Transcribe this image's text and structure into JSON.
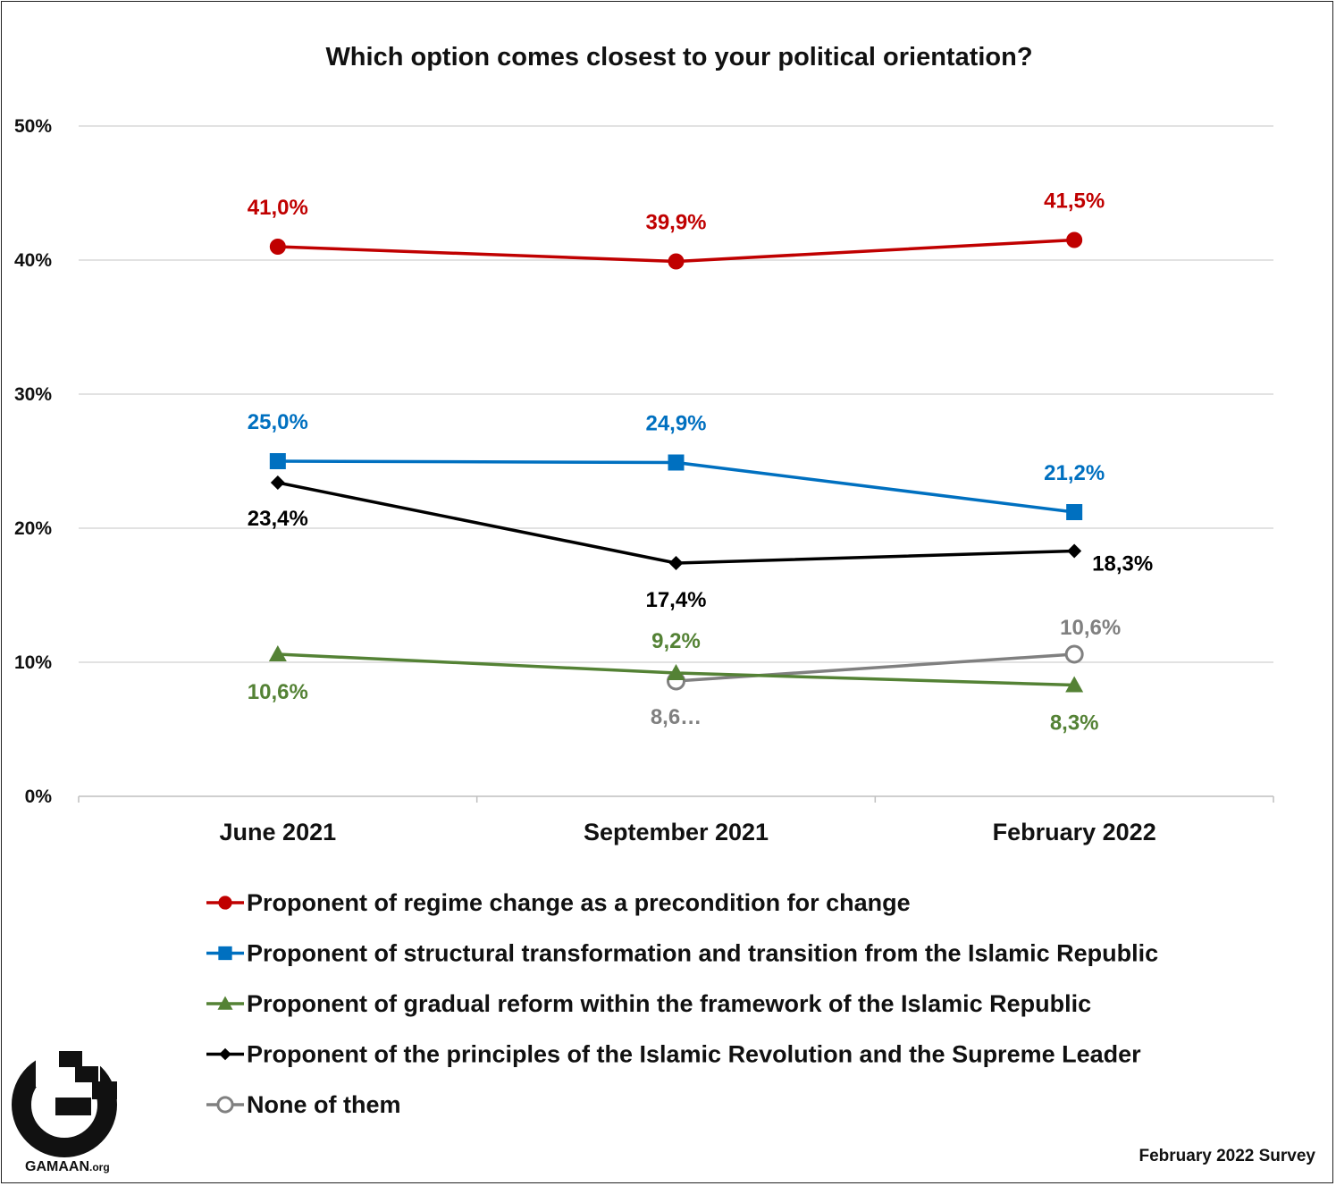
{
  "chart_data": {
    "type": "line",
    "title": "Which option comes closest to your political orientation?",
    "categories": [
      "June 2021",
      "September 2021",
      "February 2022"
    ],
    "ylim": [
      0,
      50
    ],
    "yticks": [
      0,
      10,
      20,
      30,
      40,
      50
    ],
    "ytick_labels": [
      "0%",
      "10%",
      "20%",
      "30%",
      "40%",
      "50%"
    ],
    "grid": true,
    "legend_position": "bottom",
    "series": [
      {
        "name": "Proponent of regime change as a precondition for change",
        "color": "#c00000",
        "marker": "circle",
        "values": [
          41.0,
          39.9,
          41.5
        ],
        "labels": [
          "41,0%",
          "39,9%",
          "41,5%"
        ]
      },
      {
        "name": "Proponent of structural transformation and transition from the Islamic Republic",
        "color": "#0070c0",
        "marker": "square",
        "values": [
          25.0,
          24.9,
          21.2
        ],
        "labels": [
          "25,0%",
          "24,9%",
          "21,2%"
        ]
      },
      {
        "name": "Proponent of gradual reform within the framework of the Islamic Republic",
        "color": "#548235",
        "marker": "triangle",
        "values": [
          10.6,
          9.2,
          8.3
        ],
        "labels": [
          "10,6%",
          "9,2%",
          "8,3%"
        ]
      },
      {
        "name": "Proponent of the principles of the Islamic Revolution and the Supreme Leader",
        "color": "#000000",
        "marker": "diamond",
        "values": [
          23.4,
          17.4,
          18.3
        ],
        "labels": [
          "23,4%",
          "17,4%",
          "18,3%"
        ]
      },
      {
        "name": "None of them",
        "color": "#808080",
        "marker": "open-circle",
        "values": [
          null,
          8.6,
          10.6
        ],
        "labels": [
          null,
          "8,6…",
          "10,6%"
        ]
      }
    ]
  },
  "footer": {
    "source": "February 2022 Survey",
    "logo_text": "GAMAAN",
    "logo_suffix": ".org"
  }
}
